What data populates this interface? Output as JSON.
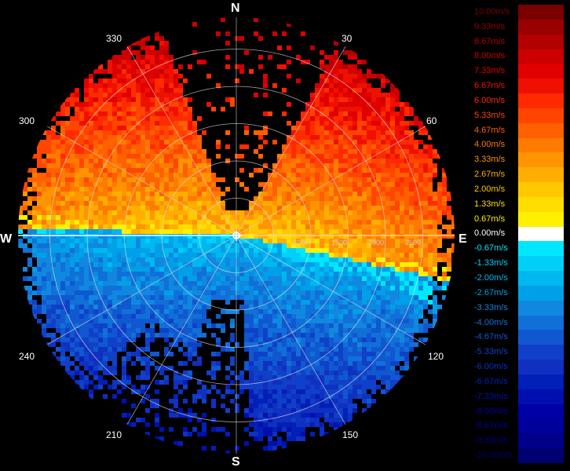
{
  "compass": {
    "north": "N",
    "south": "S",
    "east": "E",
    "west": "W"
  },
  "azimuth_labels": [
    "30",
    "60",
    "120",
    "150",
    "210",
    "240",
    "300",
    "330"
  ],
  "range_labels": [
    "1000",
    "1500",
    "2000",
    "2500"
  ],
  "legend": {
    "entries": [
      {
        "label": "10.00m/s",
        "color": "#7a0000"
      },
      {
        "label": "9.33m/s",
        "color": "#9a0000"
      },
      {
        "label": "8.67m/s",
        "color": "#b30000"
      },
      {
        "label": "8.00m/s",
        "color": "#cc0000"
      },
      {
        "label": "7.33m/s",
        "color": "#e00000"
      },
      {
        "label": "6.67m/s",
        "color": "#f01000"
      },
      {
        "label": "6.00m/s",
        "color": "#ff2a00"
      },
      {
        "label": "5.33m/s",
        "color": "#ff4500"
      },
      {
        "label": "4.67m/s",
        "color": "#ff6000"
      },
      {
        "label": "4.00m/s",
        "color": "#ff7a00"
      },
      {
        "label": "3.33m/s",
        "color": "#ff9400"
      },
      {
        "label": "2.67m/s",
        "color": "#ffae00"
      },
      {
        "label": "2.00m/s",
        "color": "#ffc800"
      },
      {
        "label": "1.33m/s",
        "color": "#ffdd00"
      },
      {
        "label": "0.67m/s",
        "color": "#fff000"
      },
      {
        "label": "0.00m/s",
        "color": "#ffffff"
      },
      {
        "label": "-0.67m/s",
        "color": "#00e8ff"
      },
      {
        "label": "-1.33m/s",
        "color": "#00d0f8"
      },
      {
        "label": "-2.00m/s",
        "color": "#00b8f0"
      },
      {
        "label": "-2.67m/s",
        "color": "#00a0e8"
      },
      {
        "label": "-3.33m/s",
        "color": "#1088e0"
      },
      {
        "label": "-4.00m/s",
        "color": "#1070d8"
      },
      {
        "label": "-4.67m/s",
        "color": "#1058d0"
      },
      {
        "label": "-5.33m/s",
        "color": "#1040c8"
      },
      {
        "label": "-6.00m/s",
        "color": "#1030c0"
      },
      {
        "label": "-6.67m/s",
        "color": "#0020b8"
      },
      {
        "label": "-7.33m/s",
        "color": "#0010b0"
      },
      {
        "label": "-8.00m/s",
        "color": "#0000a8"
      },
      {
        "label": "-8.67m/s",
        "color": "#00009a"
      },
      {
        "label": "-9.33m/s",
        "color": "#000088"
      },
      {
        "label": "-10.00m/s",
        "color": "#000070"
      }
    ]
  }
}
